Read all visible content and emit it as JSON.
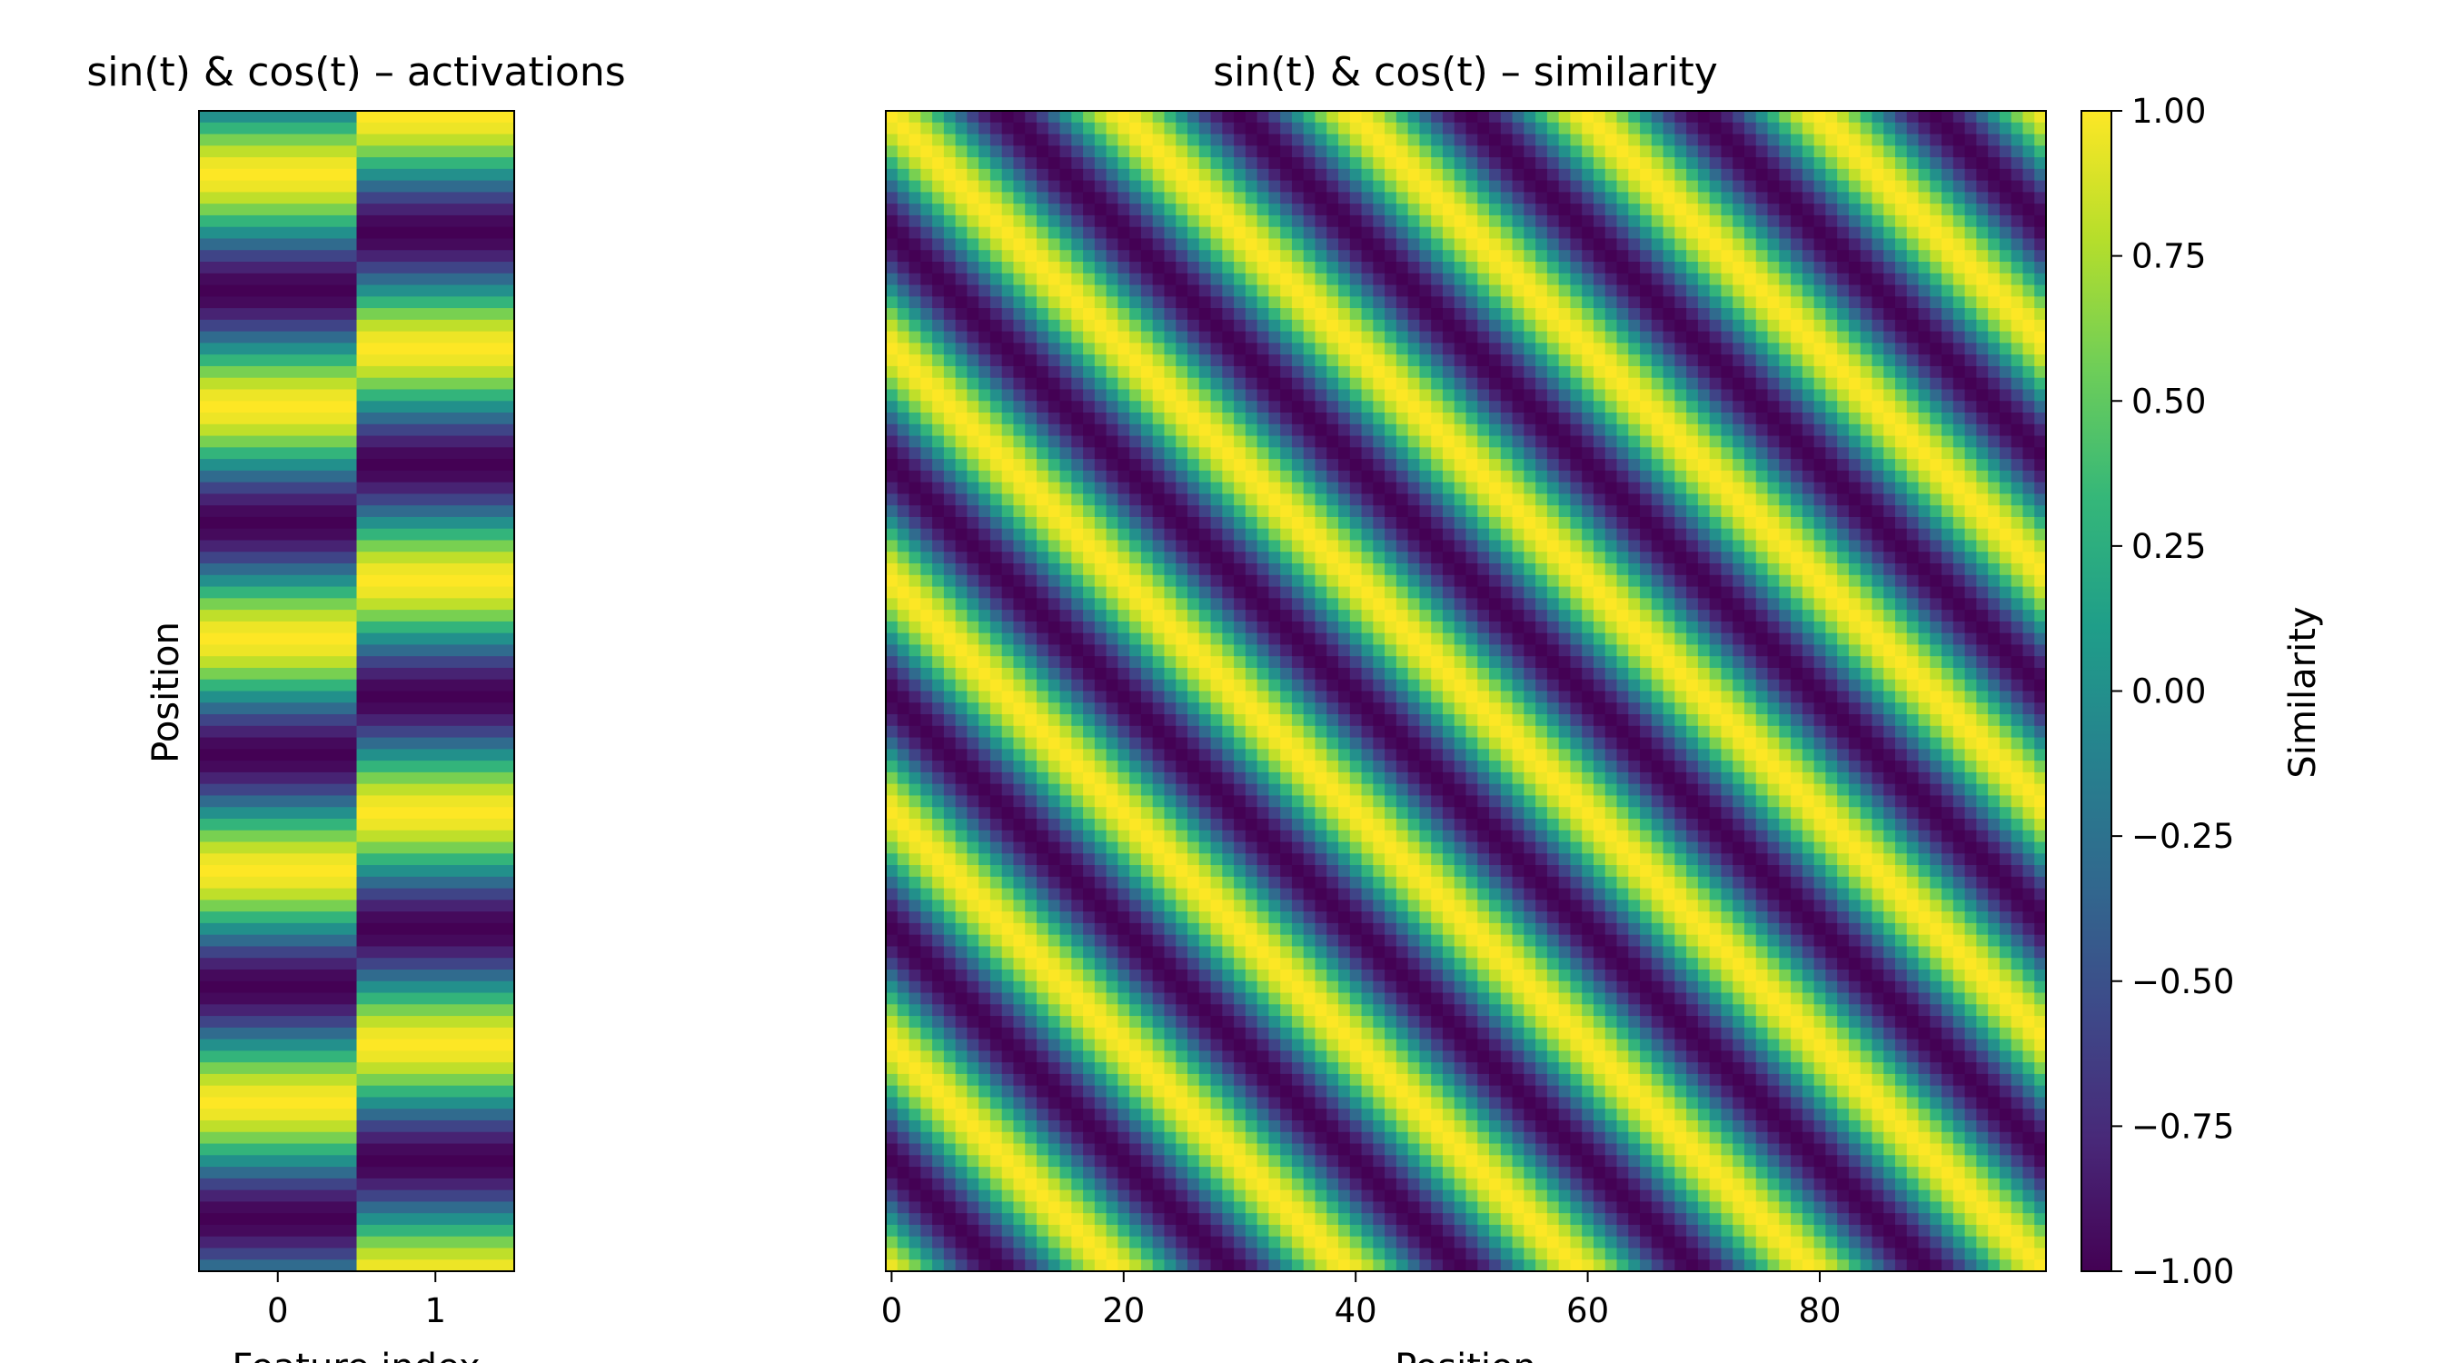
{
  "chart_data": [
    {
      "type": "heatmap",
      "title": "sin(t) & cos(t) – activations",
      "xlabel": "Feature index",
      "ylabel": "Position",
      "rows": 100,
      "columns": [
        0,
        1
      ],
      "column_functions": [
        "sin(t)",
        "cos(t)"
      ],
      "cycles_over_rows": 5,
      "x_ticks": [
        0,
        1
      ],
      "y_ticks": [],
      "colormap": "viridis",
      "vmin": -1.0,
      "vmax": 1.0
    },
    {
      "type": "heatmap",
      "title": "sin(t) & cos(t) – similarity",
      "xlabel": "Position",
      "ylabel": "",
      "size": 100,
      "formula": "cos(t_i - t_j)",
      "cycles_over_rows": 5,
      "x_ticks": [
        0,
        20,
        40,
        60,
        80
      ],
      "y_ticks": [],
      "colormap": "viridis",
      "vmin": -1.0,
      "vmax": 1.0
    }
  ],
  "colorbar": {
    "label": "Similarity",
    "ticks": [
      1.0,
      0.75,
      0.5,
      0.25,
      0.0,
      -0.25,
      -0.5,
      -0.75,
      -1.0
    ],
    "tick_labels": [
      "1.00",
      "0.75",
      "0.50",
      "0.25",
      "0.00",
      "−0.25",
      "−0.50",
      "−0.75",
      "−1.00"
    ]
  }
}
